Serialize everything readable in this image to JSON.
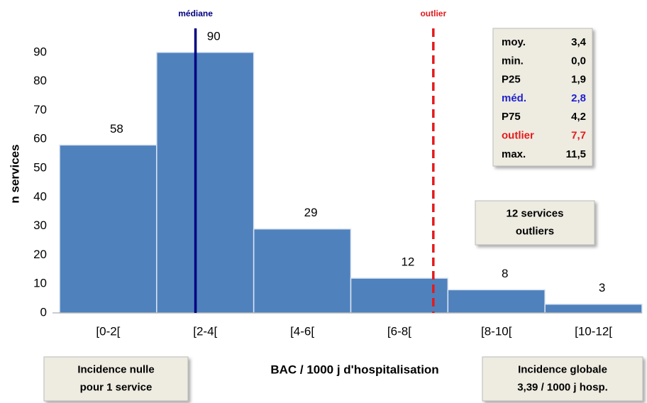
{
  "chart_data": {
    "type": "histogram",
    "y_label": "n services",
    "x_label": "BAC / 1000 j d'hospitalisation",
    "bins": [
      0,
      2,
      4,
      6,
      8,
      10,
      12
    ],
    "categories": [
      "[0-2[",
      "[2-4[",
      "[4-6[",
      "[6-8[",
      "[8-10[",
      "[10-12["
    ],
    "values": [
      58,
      90,
      29,
      12,
      8,
      3
    ],
    "color": "#4f81bd",
    "ylim": [
      0,
      100
    ],
    "yticks": [
      0,
      10,
      20,
      30,
      40,
      50,
      60,
      70,
      80,
      90
    ],
    "grid": false,
    "markers": [
      {
        "label": "médiane",
        "x": 2.8,
        "color": "#000080",
        "dashed": false
      },
      {
        "label": "outlier",
        "x": 7.7,
        "color": "#e41a1c",
        "dashed": true
      }
    ],
    "stats": [
      {
        "label": "moy.",
        "value": 3.4,
        "value_label": "3,4",
        "color": "#000000"
      },
      {
        "label": "min.",
        "value": 0.0,
        "value_label": "0,0",
        "color": "#000000"
      },
      {
        "label": "P25",
        "value": 1.9,
        "value_label": "1,9",
        "color": "#000000"
      },
      {
        "label": "méd.",
        "value": 2.8,
        "value_label": "2,8",
        "color": "#1f1fd0"
      },
      {
        "label": "P75",
        "value": 4.2,
        "value_label": "4,2",
        "color": "#000000"
      },
      {
        "label": "outlier",
        "value": 7.7,
        "value_label": "7,7",
        "color": "#e41a1c"
      },
      {
        "label": "max.",
        "value": 11.5,
        "value_label": "11,5",
        "color": "#000000"
      }
    ],
    "notes": [
      {
        "lines": [
          "12 services",
          "outliers"
        ]
      },
      {
        "lines": [
          "Incidence nulle",
          "pour 1 service"
        ]
      },
      {
        "lines": [
          "Incidence globale",
          "3,39 / 1000 j hosp."
        ]
      }
    ]
  }
}
